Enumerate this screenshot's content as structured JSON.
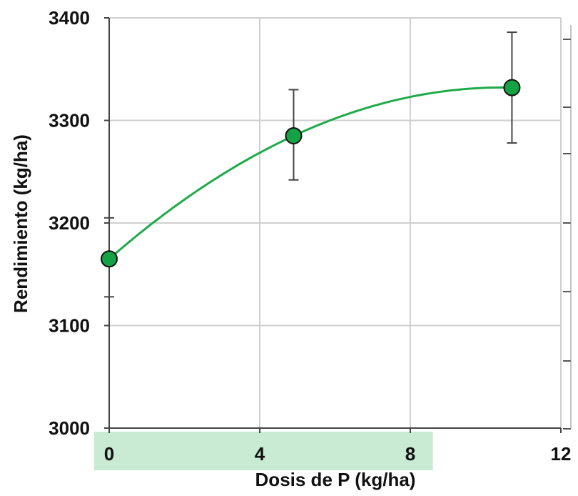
{
  "chart_data": {
    "type": "scatter",
    "xlabel": "Dosis de P (kg/ha)",
    "ylabel": "Rendimiento (kg/ha)",
    "xlim": [
      0,
      12
    ],
    "ylim": [
      3000,
      3400
    ],
    "x_ticks": [
      "0",
      "4",
      "8",
      "12"
    ],
    "y_ticks": [
      "3000",
      "3100",
      "3200",
      "3300",
      "3400"
    ],
    "grid": true,
    "points": [
      {
        "x": 0,
        "y": 3165,
        "err_low": 3128,
        "err_high": 3205
      },
      {
        "x": 4.9,
        "y": 3285,
        "err_low": 3242,
        "err_high": 3330
      },
      {
        "x": 10.7,
        "y": 3332,
        "err_low": 3278,
        "err_high": 3386
      }
    ],
    "fit_curve": {
      "type": "quadratic",
      "x_range": [
        0,
        10.7
      ],
      "color": "#1faa4a"
    },
    "x_highlight_band": {
      "from": -0.4,
      "to": 8.6,
      "color": "#c9ead3"
    },
    "marker_color": "#15a244",
    "grid_color": "#cfcfcf"
  }
}
